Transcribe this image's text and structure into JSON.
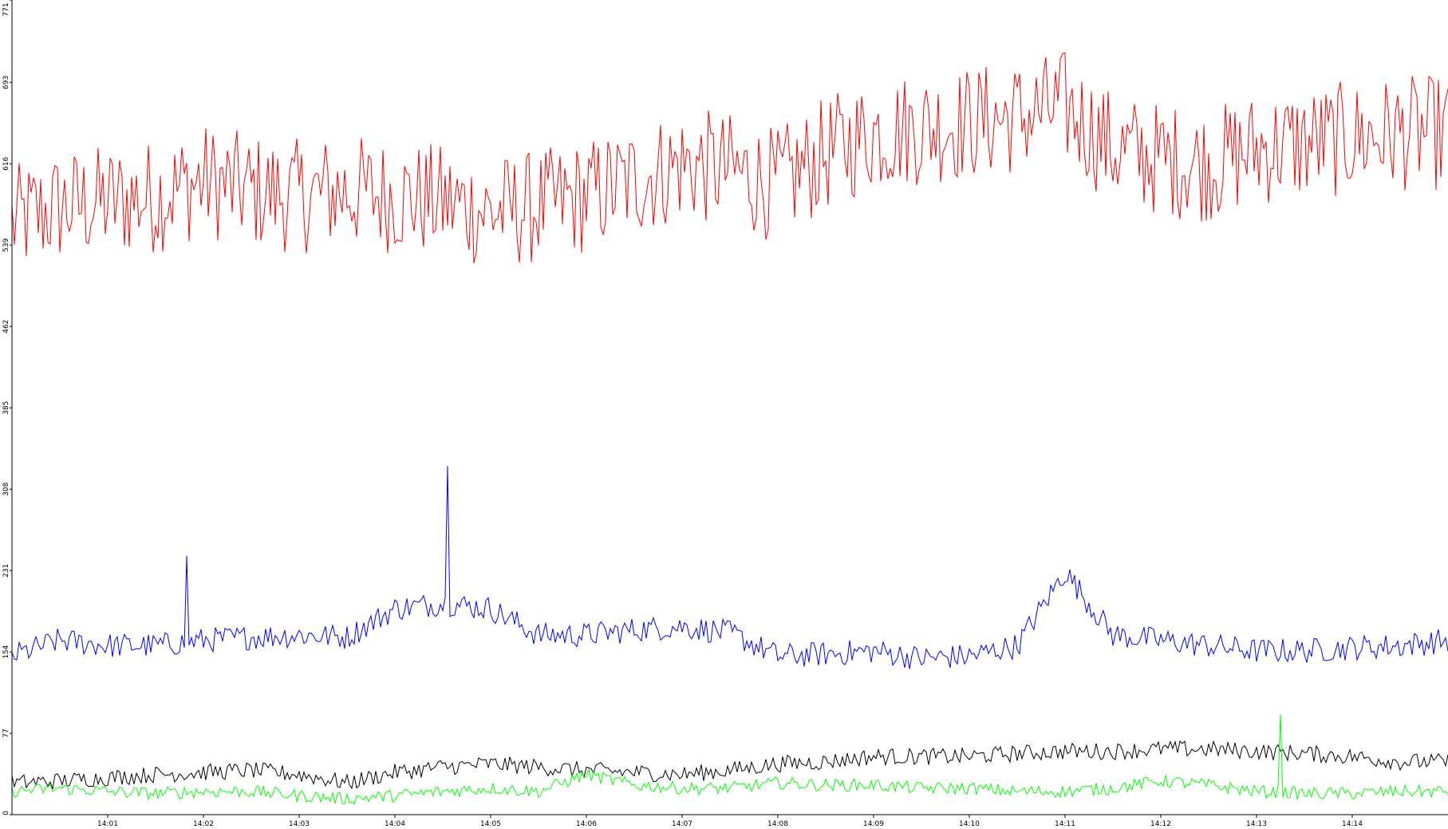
{
  "chart_data": {
    "type": "line",
    "title": "",
    "xlabel": "",
    "ylabel": "",
    "ylim": [
      0,
      771
    ],
    "y_ticks": [
      "0",
      "77",
      "154",
      "231",
      "308",
      "385",
      "462",
      "539",
      "616",
      "693",
      "771"
    ],
    "x_range": [
      "14:00",
      "14:15"
    ],
    "x_ticks": [
      "14:01",
      "14:02",
      "14:03",
      "14:04",
      "14:05",
      "14:06",
      "14:07",
      "14:08",
      "14:09",
      "14:10",
      "14:11",
      "14:12",
      "14:13",
      "14:14"
    ],
    "grid": false,
    "legend": "none",
    "series": [
      {
        "color": "#ff0000",
        "x": [
          "14:00",
          "14:00:30",
          "14:01",
          "14:01:30",
          "14:02",
          "14:02:30",
          "14:03",
          "14:03:30",
          "14:04",
          "14:04:30",
          "14:05",
          "14:05:30",
          "14:06",
          "14:06:30",
          "14:07",
          "14:07:30",
          "14:08",
          "14:08:30",
          "14:09",
          "14:09:30",
          "14:10",
          "14:10:30",
          "14:11",
          "14:11:30",
          "14:12",
          "14:12:30",
          "14:13",
          "14:13:30",
          "14:14",
          "14:14:30",
          "14:15"
        ],
        "values": [
          560,
          575,
          580,
          585,
          600,
          590,
          585,
          590,
          585,
          580,
          570,
          575,
          585,
          600,
          615,
          610,
          595,
          625,
          645,
          650,
          655,
          660,
          670,
          630,
          620,
          615,
          630,
          635,
          640,
          645,
          645
        ],
        "noise": 55
      },
      {
        "color": "#0000ff",
        "x": [
          "14:00",
          "14:00:30",
          "14:01",
          "14:01:30",
          "14:02",
          "14:02:30",
          "14:03",
          "14:03:30",
          "14:04",
          "14:04:30",
          "14:05",
          "14:05:30",
          "14:06",
          "14:06:30",
          "14:07",
          "14:07:30",
          "14:08",
          "14:08:30",
          "14:09",
          "14:09:30",
          "14:10",
          "14:10:30",
          "14:11",
          "14:11:30",
          "14:12",
          "14:12:30",
          "14:13",
          "14:13:30",
          "14:14",
          "14:14:30",
          "14:15"
        ],
        "values": [
          150,
          165,
          160,
          160,
          165,
          168,
          170,
          168,
          195,
          200,
          195,
          170,
          170,
          175,
          178,
          172,
          150,
          152,
          155,
          148,
          150,
          160,
          230,
          170,
          165,
          160,
          155,
          155,
          158,
          160,
          165
        ],
        "noise": 12,
        "spikes": [
          {
            "x": "14:01:50",
            "y": 245
          },
          {
            "x": "14:04:33",
            "y": 330
          }
        ]
      },
      {
        "color": "#000000",
        "x": [
          "14:00",
          "14:00:30",
          "14:01",
          "14:01:30",
          "14:02",
          "14:02:30",
          "14:03",
          "14:03:30",
          "14:04",
          "14:04:30",
          "14:05",
          "14:05:30",
          "14:06",
          "14:06:30",
          "14:07",
          "14:07:30",
          "14:08",
          "14:08:30",
          "14:09",
          "14:09:30",
          "14:10",
          "14:10:30",
          "14:11",
          "14:11:30",
          "14:12",
          "14:12:30",
          "14:13",
          "14:13:30",
          "14:14",
          "14:14:30",
          "14:15"
        ],
        "values": [
          30,
          32,
          35,
          38,
          40,
          42,
          38,
          30,
          40,
          45,
          48,
          45,
          42,
          40,
          38,
          42,
          48,
          50,
          55,
          55,
          55,
          58,
          60,
          60,
          62,
          62,
          60,
          58,
          55,
          50,
          50
        ],
        "noise": 8
      },
      {
        "color": "#00ff00",
        "x": [
          "14:00",
          "14:00:30",
          "14:01",
          "14:01:30",
          "14:02",
          "14:02:30",
          "14:03",
          "14:03:30",
          "14:04",
          "14:04:30",
          "14:05",
          "14:05:30",
          "14:06",
          "14:06:30",
          "14:07",
          "14:07:30",
          "14:08",
          "14:08:30",
          "14:09",
          "14:09:30",
          "14:10",
          "14:10:30",
          "14:11",
          "14:11:30",
          "14:12",
          "14:12:30",
          "14:13",
          "14:13:30",
          "14:14",
          "14:14:30",
          "14:15"
        ],
        "values": [
          22,
          25,
          22,
          20,
          22,
          22,
          18,
          15,
          18,
          22,
          25,
          22,
          38,
          28,
          25,
          25,
          30,
          28,
          28,
          25,
          25,
          22,
          22,
          25,
          32,
          28,
          22,
          20,
          20,
          22,
          22
        ],
        "noise": 6,
        "spikes": [
          {
            "x": "14:13:15",
            "y": 95
          }
        ]
      }
    ]
  }
}
